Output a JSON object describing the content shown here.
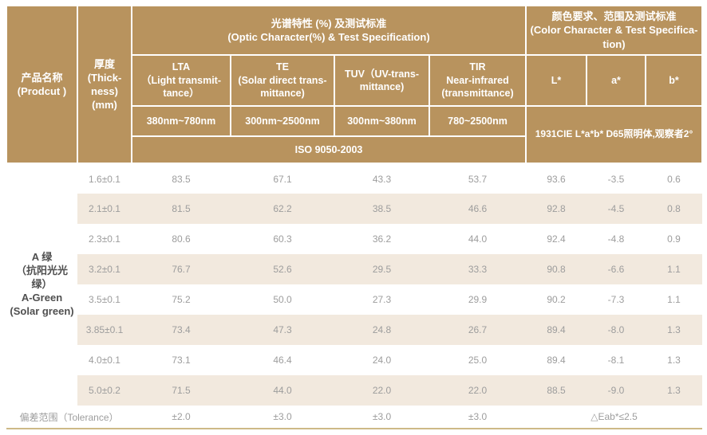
{
  "table": {
    "header": {
      "product": "产品名称\n(Prodcut )",
      "thickness": "厚度\n(Thick-\nness)\n(mm)",
      "optic_group": "光谱特性 (%) 及测试标准\n(Optic Character(%) & Test Specification)",
      "color_group": "颜色要求、范围及测试标准\n(Color Character & Test Specifica-\ntion)",
      "optic_columns": [
        {
          "name": "LTA\n（Light transmit-\ntance）",
          "range": "380nm~780nm"
        },
        {
          "name": "TE\n(Solar direct trans-\nmittance)",
          "range": "300nm~2500nm"
        },
        {
          "name": "TUV（UV-trans-\nmittance)",
          "range": "300nm~380nm"
        },
        {
          "name": "TIR\nNear-infrared\n(transmittance)",
          "range": "780~2500nm"
        }
      ],
      "optic_standard": "ISO 9050-2003",
      "color_columns": [
        "L*",
        "a*",
        "b*"
      ],
      "color_standard": "1931CIE L*a*b*  D65照明体,观察者2°"
    },
    "body": {
      "product_name": "A 绿\n（抗阳光光绿）\nA-Green\n(Solar green)",
      "rows": [
        {
          "thickness": "1.6±0.1",
          "values": [
            "83.5",
            "67.1",
            "43.3",
            "53.7",
            "93.6",
            "-3.5",
            "0.6"
          ]
        },
        {
          "thickness": "2.1±0.1",
          "values": [
            "81.5",
            "62.2",
            "38.5",
            "46.6",
            "92.8",
            "-4.5",
            "0.8"
          ]
        },
        {
          "thickness": "2.3±0.1",
          "values": [
            "80.6",
            "60.3",
            "36.2",
            "44.0",
            "92.4",
            "-4.8",
            "0.9"
          ]
        },
        {
          "thickness": "3.2±0.1",
          "values": [
            "76.7",
            "52.6",
            "29.5",
            "33.3",
            "90.8",
            "-6.6",
            "1.1"
          ]
        },
        {
          "thickness": "3.5±0.1",
          "values": [
            "75.2",
            "50.0",
            "27.3",
            "29.9",
            "90.2",
            "-7.3",
            "1.1"
          ]
        },
        {
          "thickness": "3.85±0.1",
          "values": [
            "73.4",
            "47.3",
            "24.8",
            "26.7",
            "89.4",
            "-8.0",
            "1.3"
          ]
        },
        {
          "thickness": "4.0±0.1",
          "values": [
            "73.1",
            "46.4",
            "24.0",
            "25.0",
            "89.4",
            "-8.1",
            "1.3"
          ]
        },
        {
          "thickness": "5.0±0.2",
          "values": [
            "71.5",
            "44.0",
            "22.0",
            "22.0",
            "88.5",
            "-9.0",
            "1.3"
          ]
        }
      ],
      "tolerance": {
        "label": "偏差范围（Tolerance）",
        "values": [
          "±2.0",
          "±3.0",
          "±3.0",
          "±3.0"
        ],
        "color_value": "△Eab*≤2.5"
      }
    },
    "colors": {
      "header_bg": "#b8935e",
      "stripe_bg": "#f2e9de",
      "value_text": "#9d9d9d",
      "product_text": "#4f4f4f",
      "bottom_line": "#cdb987"
    }
  }
}
